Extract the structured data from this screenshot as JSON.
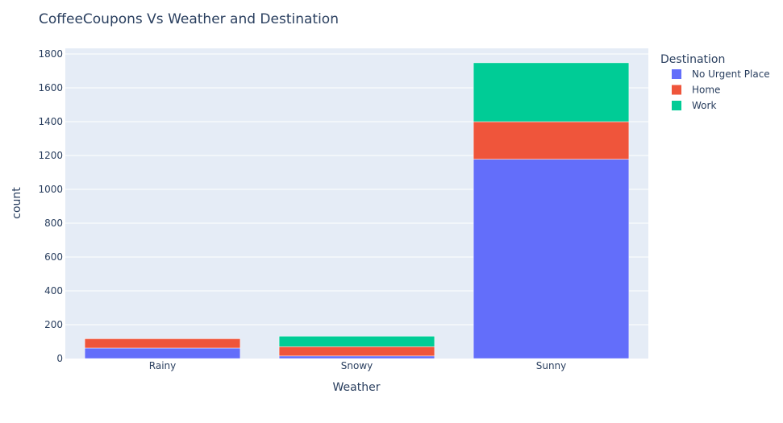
{
  "chart_data": {
    "type": "bar",
    "barmode": "stack",
    "title": "CoffeeCoupons Vs Weather and Destination",
    "xlabel": "Weather",
    "ylabel": "count",
    "categories": [
      "Rainy",
      "Snowy",
      "Sunny"
    ],
    "ylim": [
      0,
      1800
    ],
    "yticks": [
      0,
      200,
      400,
      600,
      800,
      1000,
      1200,
      1400,
      1600,
      1800
    ],
    "grid": true,
    "legend": {
      "title": "Destination",
      "position": "top-right"
    },
    "series": [
      {
        "name": "No Urgent Place",
        "color": "#636efa",
        "values": [
          62,
          15,
          1178
        ]
      },
      {
        "name": "Home",
        "color": "#ef553b",
        "values": [
          55,
          55,
          222
        ]
      },
      {
        "name": "Work",
        "color": "#00cc96",
        "values": [
          0,
          62,
          348
        ]
      }
    ]
  }
}
